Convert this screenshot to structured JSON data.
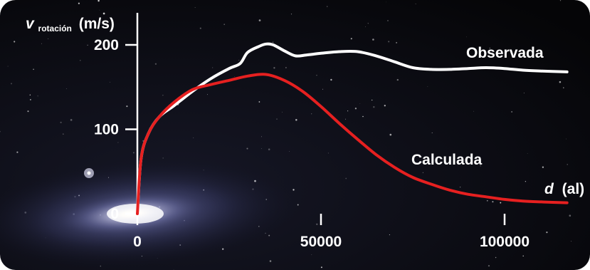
{
  "chart_data": {
    "type": "line",
    "ylabel": {
      "symbol": "v",
      "subscript": "rotación",
      "unit": "(m/s)"
    },
    "xlabel": {
      "symbol": "d",
      "unit": "(al)"
    },
    "xlim": [
      0,
      118000
    ],
    "ylim": [
      0,
      220
    ],
    "x_ticks": [
      {
        "value": 0,
        "label": "0"
      },
      {
        "value": 50000,
        "label": "50000"
      },
      {
        "value": 100000,
        "label": "100000"
      }
    ],
    "y_ticks": [
      {
        "value": 0,
        "label": "0"
      },
      {
        "value": 100,
        "label": "100"
      },
      {
        "value": 200,
        "label": "200"
      }
    ],
    "series": [
      {
        "name": "Observada",
        "color": "#ffffff",
        "x": [
          0,
          1000,
          3000,
          6000,
          10000,
          15000,
          20000,
          25000,
          28000,
          30000,
          33000,
          35000,
          37000,
          40000,
          43000,
          46000,
          50000,
          55000,
          60000,
          65000,
          70000,
          75000,
          80000,
          85000,
          90000,
          95000,
          100000,
          105000,
          110000,
          117000
        ],
        "y": [
          0,
          65,
          95,
          115,
          128,
          145,
          160,
          172,
          178,
          191,
          198,
          201,
          200,
          193,
          187,
          188,
          190,
          192,
          192,
          187,
          180,
          173,
          171,
          171,
          172,
          173,
          172,
          170,
          169,
          168
        ]
      },
      {
        "name": "Calculada",
        "color": "#e62020",
        "x": [
          0,
          1000,
          3000,
          6000,
          10000,
          15000,
          20000,
          25000,
          30000,
          35000,
          40000,
          45000,
          50000,
          55000,
          60000,
          65000,
          70000,
          75000,
          80000,
          85000,
          90000,
          95000,
          100000,
          105000,
          110000,
          117000
        ],
        "y": [
          0,
          65,
          95,
          115,
          132,
          147,
          153,
          158,
          163,
          165,
          158,
          145,
          127,
          107,
          88,
          70,
          55,
          43,
          35,
          28,
          23,
          20,
          17,
          15,
          14,
          13
        ]
      }
    ],
    "grid": false,
    "legend": "inline labels near curves"
  }
}
